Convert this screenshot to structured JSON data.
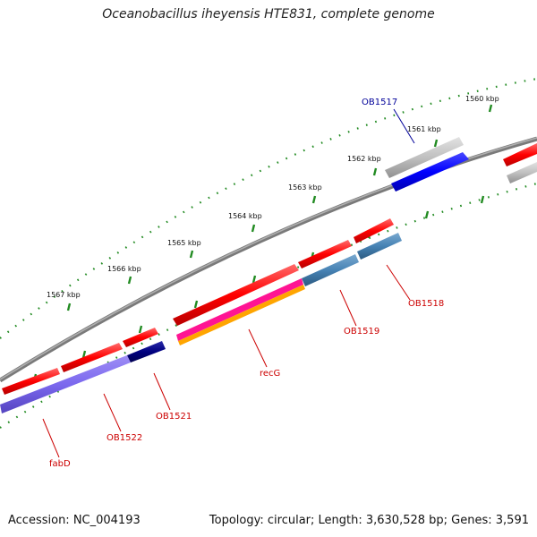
{
  "header": {
    "title": "Oceanobacillus iheyensis HTE831, complete genome"
  },
  "footer": {
    "accession": "Accession: NC_004193",
    "topology": "Topology: circular; Length: 3,630,528 bp; Genes: 3,591"
  },
  "ruler": {
    "ticks": [
      {
        "label": "1560 kbp"
      },
      {
        "label": "1561 kbp"
      },
      {
        "label": "1562 kbp"
      },
      {
        "label": "1563 kbp"
      },
      {
        "label": "1564 kbp"
      },
      {
        "label": "1565 kbp"
      },
      {
        "label": "1566 kbp"
      },
      {
        "label": "1567 kbp"
      }
    ]
  },
  "genes": [
    {
      "name": "OB1517",
      "color": "#000099"
    },
    {
      "name": "OB1518",
      "color": "#cc0000"
    },
    {
      "name": "OB1519",
      "color": "#cc0000"
    },
    {
      "name": "recG",
      "color": "#cc0000"
    },
    {
      "name": "OB1521",
      "color": "#cc0000"
    },
    {
      "name": "OB1522",
      "color": "#cc0000"
    },
    {
      "name": "fabD",
      "color": "#cc0000"
    }
  ],
  "colors": {
    "backbone": "#808080",
    "cds": "#ff0000",
    "cog_blue": "#0000ff",
    "cog_steel": "#4682b4",
    "cog_magenta": "#ff1493",
    "cog_orange": "#ffa500",
    "cog_navy": "#000080",
    "cog_slate": "#7b68ee",
    "cog_gray": "#c0c0c0",
    "ticks": "#228b22"
  }
}
